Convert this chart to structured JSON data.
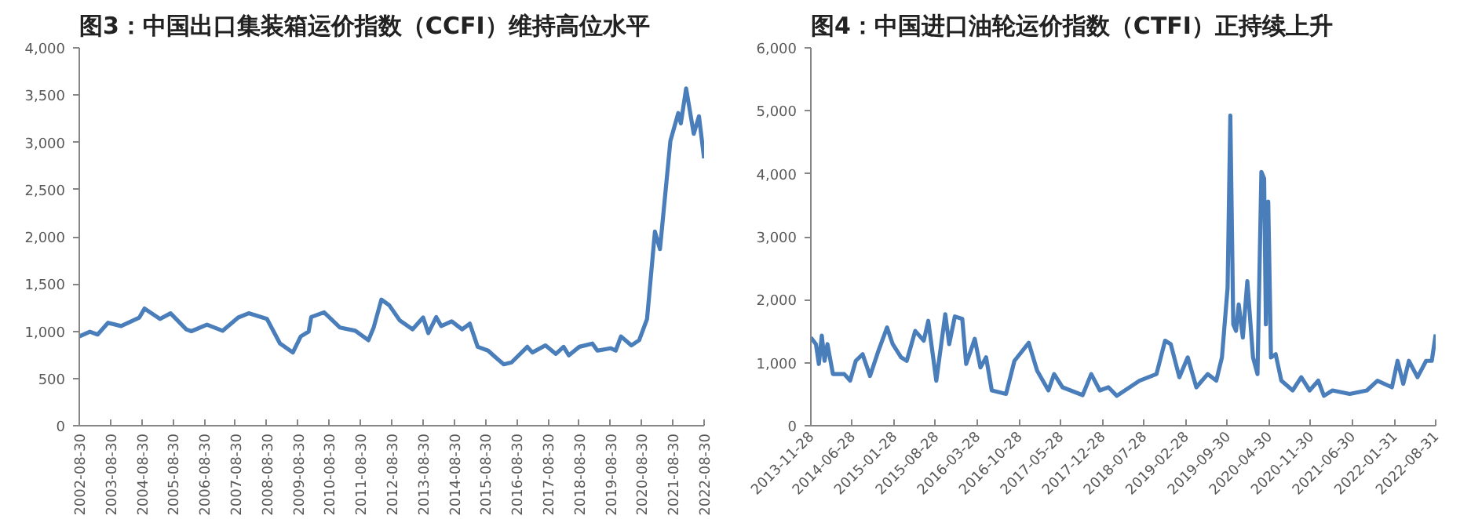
{
  "chart_data": [
    {
      "type": "line",
      "title": "图3：中国出口集装箱运价指数（CCFI）维持高位水平",
      "x": [
        "2002-08-30",
        "2003-01",
        "2003-04",
        "2003-08",
        "2004-01",
        "2004-08",
        "2004-10",
        "2005-04",
        "2005-08",
        "2006-02",
        "2006-04",
        "2006-10",
        "2007-04",
        "2007-10",
        "2008-02",
        "2008-09",
        "2009-02",
        "2009-07",
        "2009-10",
        "2010-01",
        "2010-02",
        "2010-07",
        "2011-01",
        "2011-07",
        "2011-12",
        "2012-02",
        "2012-05",
        "2012-08",
        "2012-12",
        "2013-05",
        "2013-09",
        "2013-11",
        "2014-02",
        "2014-04",
        "2014-08",
        "2014-12",
        "2015-03",
        "2015-06",
        "2015-10",
        "2016-01",
        "2016-04",
        "2016-07",
        "2017-01",
        "2017-03",
        "2017-08",
        "2017-12",
        "2018-03",
        "2018-05",
        "2018-09",
        "2019-02",
        "2019-04",
        "2019-09",
        "2019-11",
        "2020-01",
        "2020-05",
        "2020-08",
        "2020-11",
        "2021-02",
        "2021-04",
        "2021-08",
        "2021-11",
        "2021-12",
        "2022-02",
        "2022-05",
        "2022-07",
        "2022-08-30"
      ],
      "series": [
        {
          "color": "#4a7ebb",
          "values": [
            945,
            995,
            965,
            1090,
            1055,
            1145,
            1240,
            1130,
            1190,
            1020,
            1000,
            1070,
            1005,
            1145,
            1190,
            1130,
            870,
            775,
            945,
            995,
            1150,
            1200,
            1040,
            1005,
            905,
            1040,
            1335,
            1275,
            1115,
            1020,
            1145,
            980,
            1150,
            1055,
            1105,
            1020,
            1080,
            835,
            795,
            720,
            650,
            670,
            835,
            775,
            850,
            760,
            835,
            745,
            835,
            870,
            795,
            820,
            795,
            945,
            850,
            905,
            1130,
            2055,
            1870,
            3015,
            3310,
            3200,
            3570,
            3090,
            3275,
            2830
          ]
        }
      ],
      "xlim": [
        "2002-08-30",
        "2022-08-30"
      ],
      "xticks": [
        "2002-08-30",
        "2003-08-30",
        "2004-08-30",
        "2005-08-30",
        "2006-08-30",
        "2007-08-30",
        "2008-08-30",
        "2009-08-30",
        "2010-08-30",
        "2011-08-30",
        "2012-08-30",
        "2013-08-30",
        "2014-08-30",
        "2015-08-30",
        "2016-08-30",
        "2017-08-30",
        "2018-08-30",
        "2019-08-30",
        "2020-08-30",
        "2021-08-30",
        "2022-08-30"
      ],
      "ylim": [
        0,
        4000
      ],
      "yticks": [
        0,
        500,
        {
          "value": 1000,
          "label": "1,000"
        },
        {
          "value": 1500,
          "label": "1,500"
        },
        {
          "value": 2000,
          "label": "2,000"
        },
        {
          "value": 2500,
          "label": "2,500"
        },
        {
          "value": 3000,
          "label": "3,000"
        },
        {
          "value": 3500,
          "label": "3,500"
        },
        {
          "value": 4000,
          "label": "4,000"
        }
      ],
      "grid": false,
      "marker": "none",
      "line_style": "solid"
    },
    {
      "type": "line",
      "title": "图4：中国进口油轮运价指数（CTFI）正持续上升",
      "x": [
        "2013-11-28",
        "2013-12-24",
        "2014-01-08",
        "2014-01-23",
        "2014-02-06",
        "2014-02-21",
        "2014-03-21",
        "2014-05-18",
        "2014-06-17",
        "2014-07-16",
        "2014-08-20",
        "2014-09-27",
        "2014-11-09",
        "2014-12-23",
        "2015-01-21",
        "2015-03-05",
        "2015-04-03",
        "2015-05-16",
        "2015-06-29",
        "2015-07-22",
        "2015-09-01",
        "2015-10-17",
        "2015-11-06",
        "2015-12-05",
        "2016-01-12",
        "2016-02-01",
        "2016-03-16",
        "2016-04-14",
        "2016-05-13",
        "2016-06-11",
        "2016-08-23",
        "2016-10-05",
        "2016-12-17",
        "2017-01-29",
        "2017-03-28",
        "2017-04-26",
        "2017-06-08",
        "2017-09-19",
        "2017-11-02",
        "2017-12-16",
        "2018-01-29",
        "2018-03-13",
        "2018-07-07",
        "2018-10-02",
        "2018-11-15",
        "2018-12-14",
        "2019-01-27",
        "2019-03-11",
        "2019-04-24",
        "2019-06-21",
        "2019-08-04",
        "2019-09-02",
        "2019-10-01",
        "2019-10-15",
        "2019-10-30",
        "2019-11-13",
        "2019-11-27",
        "2019-12-18",
        "2020-01-10",
        "2020-02-08",
        "2020-03-02",
        "2020-03-22",
        "2020-04-05",
        "2020-04-14",
        "2020-04-26",
        "2020-05-10",
        "2020-06-03",
        "2020-07-02",
        "2020-08-29",
        "2020-10-12",
        "2020-11-24",
        "2021-01-07",
        "2021-02-05",
        "2021-03-21",
        "2021-06-17",
        "2021-09-13",
        "2021-11-06",
        "2022-01-19",
        "2022-02-17",
        "2022-03-18",
        "2022-04-16",
        "2022-05-30",
        "2022-07-13",
        "2022-08-11",
        "2022-08-31"
      ],
      "series": [
        {
          "color": "#4a7ebb",
          "values": [
            1400,
            1295,
            980,
            1430,
            1030,
            1295,
            820,
            820,
            715,
            1030,
            1135,
            790,
            1190,
            1560,
            1295,
            1085,
            1030,
            1505,
            1350,
            1665,
            715,
            1770,
            1295,
            1735,
            1695,
            980,
            1380,
            925,
            1085,
            560,
            505,
            1030,
            1315,
            875,
            560,
            820,
            610,
            485,
            820,
            560,
            610,
            475,
            715,
            820,
            1350,
            1295,
            770,
            1085,
            610,
            820,
            715,
            1085,
            2190,
            4925,
            1610,
            1505,
            1925,
            1400,
            2295,
            1085,
            820,
            4030,
            3925,
            1610,
            3560,
            1085,
            1135,
            715,
            560,
            770,
            560,
            715,
            475,
            560,
            505,
            560,
            715,
            610,
            1030,
            665,
            1030,
            770,
            1030,
            1030,
            1450
          ]
        }
      ],
      "xlim": [
        "2013-11-28",
        "2022-08-31"
      ],
      "xticks": [
        "2013-11-28",
        "2014-06-28",
        "2015-01-28",
        "2015-08-28",
        "2016-03-28",
        "2016-10-28",
        "2017-05-28",
        "2017-12-28",
        "2018-07-28",
        "2019-02-28",
        "2019-09-30",
        "2020-04-30",
        "2020-11-30",
        "2021-06-30",
        "2022-01-31",
        "2022-08-31"
      ],
      "ylim": [
        0,
        6000
      ],
      "yticks": [
        0,
        {
          "value": 1000,
          "label": "1,000"
        },
        {
          "value": 2000,
          "label": "2,000"
        },
        {
          "value": 3000,
          "label": "3,000"
        },
        {
          "value": 4000,
          "label": "4,000"
        },
        {
          "value": 5000,
          "label": "5,000"
        },
        {
          "value": 6000,
          "label": "6,000"
        }
      ],
      "grid": false,
      "marker": "none",
      "line_style": "solid"
    }
  ]
}
